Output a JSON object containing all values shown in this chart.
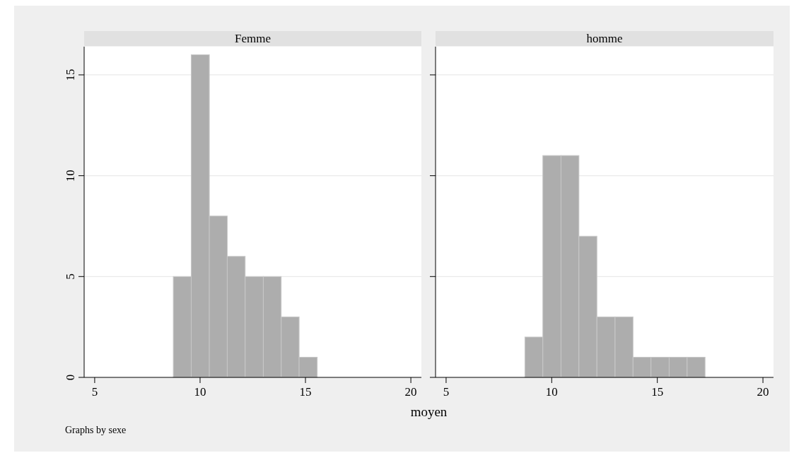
{
  "chart_data": [
    {
      "type": "histogram",
      "title": "Femme",
      "xlabel": "moyen",
      "annotations": [
        "Graphs by sexe"
      ],
      "bins": [
        8.73,
        9.58,
        10.44,
        11.29,
        12.14,
        13.0,
        13.85,
        14.7,
        15.56
      ],
      "values": [
        5,
        16,
        8,
        6,
        5,
        5,
        3,
        1
      ],
      "color": "#adadad",
      "xlim": [
        4.5,
        20.5
      ],
      "xticks": [
        5,
        10,
        15,
        20
      ],
      "ylim": [
        0,
        16.4
      ],
      "yticks": [
        0,
        5,
        10,
        15
      ],
      "grid": "y"
    },
    {
      "type": "histogram",
      "title": "homme",
      "bins": [
        8.73,
        9.58,
        10.44,
        11.29,
        12.14,
        13.0,
        13.85,
        14.7,
        15.56,
        16.41,
        17.26
      ],
      "values": [
        2,
        11,
        11,
        7,
        3,
        3,
        1,
        1,
        1,
        1
      ],
      "color": "#adadad",
      "xlim": [
        4.5,
        20.5
      ],
      "xticks": [
        5,
        10,
        15,
        20
      ],
      "ylim": [
        0,
        16.4
      ],
      "yticks": [
        0,
        5,
        10,
        15
      ],
      "grid": "y",
      "tick_labels": "x"
    }
  ]
}
